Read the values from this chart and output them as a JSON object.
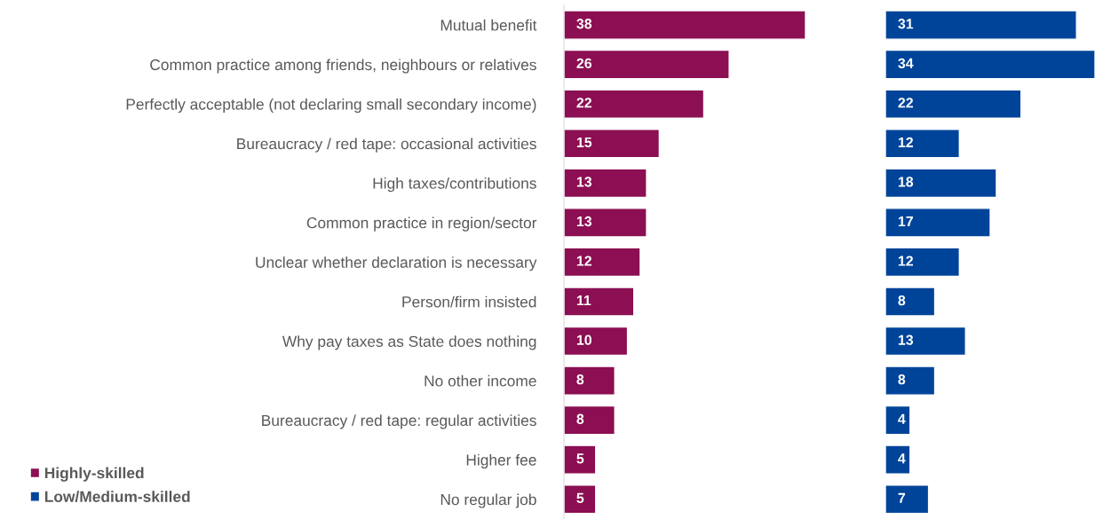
{
  "chart_data": [
    {
      "type": "bar",
      "orientation": "horizontal",
      "categories": [
        "Mutual benefit",
        "Common practice among friends, neighbours or relatives",
        "Perfectly acceptable (not declaring small secondary income)",
        "Bureaucracy / red tape: occasional activities",
        "High taxes/contributions",
        "Common practice in region/sector",
        "Unclear whether declaration is necessary",
        "Person/firm insisted",
        "Why pay taxes as State does nothing",
        "No other income",
        "Bureaucracy / red tape: regular activities",
        "Higher fee",
        "No regular job"
      ],
      "series": [
        {
          "name": "Highly-skilled",
          "color": "#8b0f52",
          "values": [
            38,
            26,
            22,
            15,
            13,
            13,
            12,
            11,
            10,
            8,
            8,
            5,
            5
          ]
        }
      ],
      "data_labels": true,
      "tick_labels": "y",
      "legend": "bottom left"
    },
    {
      "type": "bar",
      "orientation": "horizontal",
      "categories": [
        null,
        null,
        null,
        null,
        null,
        null,
        null,
        null,
        null,
        null,
        null,
        null,
        null
      ],
      "series": [
        {
          "name": "Low/Medium-skilled",
          "color": "#00449a",
          "values": [
            31,
            34,
            22,
            12,
            18,
            17,
            12,
            8,
            13,
            8,
            4,
            4,
            7
          ]
        }
      ],
      "data_labels": true,
      "tick_labels": false,
      "legend": "bottom left"
    }
  ]
}
